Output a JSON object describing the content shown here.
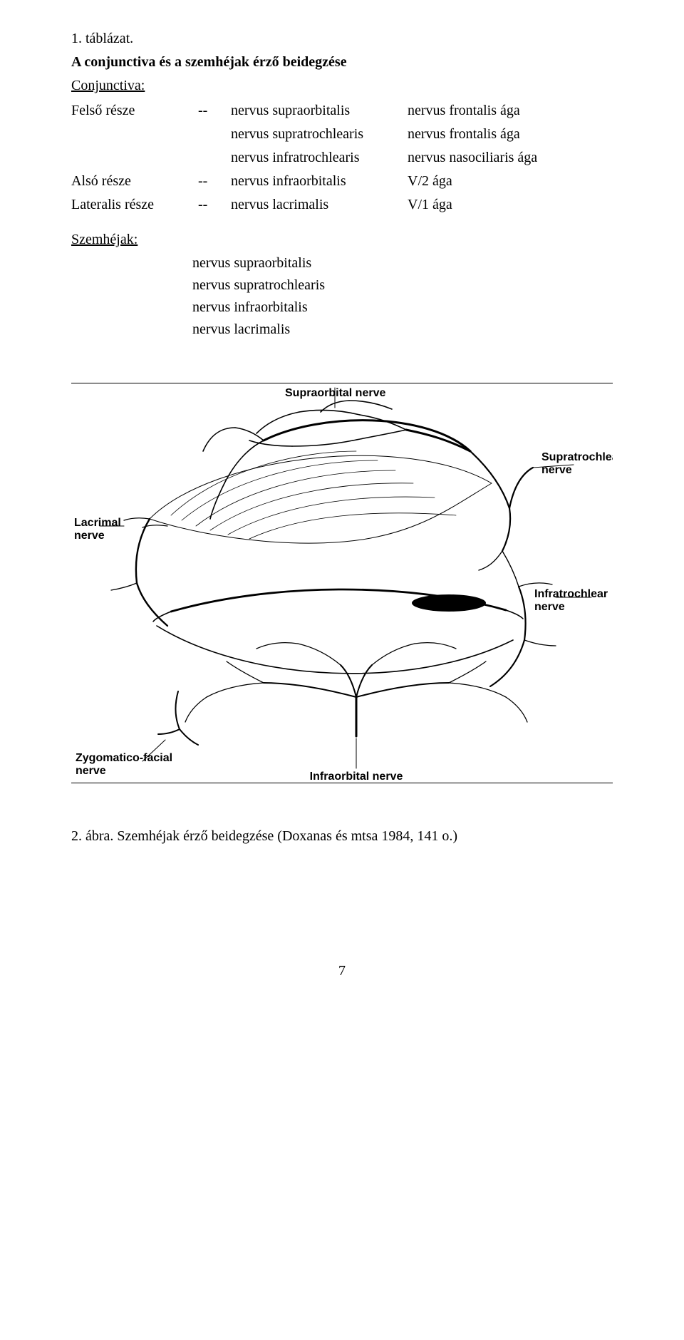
{
  "header": {
    "table_label": "1. táblázat.",
    "title": "A conjunctiva és a szemhéjak érző beidegzése",
    "conjunctiva_label": "Conjunctiva:"
  },
  "conjunctiva_rows": [
    {
      "col0": "Felső része",
      "dash": "--",
      "nerve": "nervus supraorbitalis",
      "target": "nervus frontalis ága"
    },
    {
      "col0": "",
      "dash": "",
      "nerve": "nervus supratrochlearis",
      "target": "nervus frontalis ága"
    },
    {
      "col0": "",
      "dash": "",
      "nerve": "nervus infratrochlearis",
      "target": "nervus nasociliaris ága"
    },
    {
      "col0": "Alsó része",
      "dash": "--",
      "nerve": "nervus infraorbitalis",
      "target": "V/2 ága"
    },
    {
      "col0": "Lateralis része",
      "dash": "--",
      "nerve": "nervus lacrimalis",
      "target": "V/1 ága"
    }
  ],
  "szemhejak": {
    "label": "Szemhéjak:",
    "items": [
      "nervus supraorbitalis",
      "nervus supratrochlearis",
      "nervus infraorbitalis",
      "nervus lacrimalis"
    ]
  },
  "figure": {
    "labels": {
      "supraorbital": "Supraorbital nerve",
      "supratrochlear": "Supratrochlear\nnerve",
      "lacrimal": "Lacrimal\nnerve",
      "infratrochlear": "Infratrochlear\nnerve",
      "zygomatico": "Zygomatico-facial\nnerve",
      "infraorbital": "Infraorbital nerve"
    },
    "style": {
      "stroke": "#000000",
      "stroke_width_thin": 1.2,
      "stroke_width_med": 2.0,
      "stroke_width_thick": 3.0,
      "font_family": "Arial, Helvetica, sans-serif",
      "font_size": 16,
      "font_weight": "bold",
      "bg": "#ffffff"
    }
  },
  "caption": "2. ábra. Szemhéjak érző beidegzése (Doxanas és mtsa 1984, 141 o.)",
  "page_number": "7"
}
